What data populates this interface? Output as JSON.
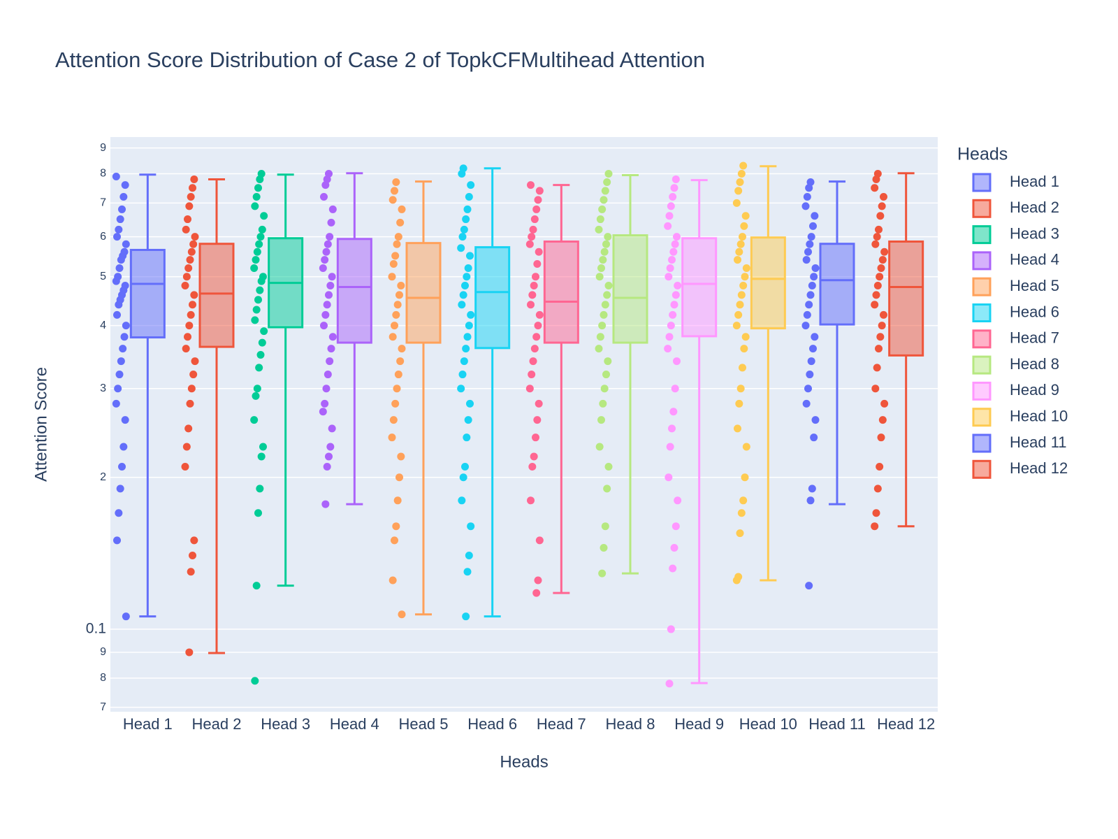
{
  "chart_data": {
    "type": "box",
    "title": "Attention Score Distribution of Case 2 of TopkCFMultihead Attention",
    "x_label": "Heads",
    "y_label": "Attention Score",
    "legend_title": "Heads",
    "log_y": true,
    "grid": true,
    "legend_position": "right",
    "ylim": [
      0.0686,
      0.946
    ],
    "yticks": [
      {
        "value": 0.9,
        "label": "9"
      },
      {
        "value": 0.8,
        "label": "8"
      },
      {
        "value": 0.7,
        "label": "7"
      },
      {
        "value": 0.6,
        "label": "6"
      },
      {
        "value": 0.5,
        "label": "5"
      },
      {
        "value": 0.4,
        "label": "4"
      },
      {
        "value": 0.3,
        "label": "3"
      },
      {
        "value": 0.2,
        "label": "2"
      },
      0.1,
      {
        "value": 0.09,
        "label": "9"
      },
      {
        "value": 0.08,
        "label": "8"
      },
      {
        "value": 0.07,
        "label": "7"
      }
    ],
    "series": [
      {
        "name": "Head 1",
        "color": "#636efa",
        "lowerfence": 0.106,
        "q1": 0.379,
        "median": 0.484,
        "q3": 0.565,
        "upperfence": 0.797,
        "points": [
          0.79,
          0.76,
          0.72,
          0.68,
          0.65,
          0.62,
          0.6,
          0.58,
          0.56,
          0.55,
          0.54,
          0.52,
          0.5,
          0.49,
          0.48,
          0.47,
          0.46,
          0.45,
          0.44,
          0.42,
          0.4,
          0.38,
          0.36,
          0.34,
          0.32,
          0.3,
          0.28,
          0.26,
          0.23,
          0.21,
          0.19,
          0.17,
          0.15,
          0.106
        ]
      },
      {
        "name": "Head 2",
        "color": "#EF553B",
        "lowerfence": 0.0897,
        "q1": 0.363,
        "median": 0.463,
        "q3": 0.581,
        "upperfence": 0.78,
        "points": [
          0.78,
          0.75,
          0.72,
          0.69,
          0.65,
          0.62,
          0.6,
          0.58,
          0.56,
          0.54,
          0.52,
          0.5,
          0.48,
          0.46,
          0.44,
          0.42,
          0.4,
          0.38,
          0.36,
          0.34,
          0.32,
          0.3,
          0.28,
          0.25,
          0.23,
          0.21,
          0.15,
          0.14,
          0.13,
          0.09
        ]
      },
      {
        "name": "Head 3",
        "color": "#00cc96",
        "lowerfence": 0.122,
        "q1": 0.397,
        "median": 0.486,
        "q3": 0.596,
        "upperfence": 0.797,
        "points": [
          0.8,
          0.78,
          0.75,
          0.72,
          0.69,
          0.66,
          0.62,
          0.6,
          0.58,
          0.56,
          0.54,
          0.52,
          0.5,
          0.49,
          0.47,
          0.45,
          0.43,
          0.41,
          0.39,
          0.37,
          0.35,
          0.33,
          0.3,
          0.29,
          0.26,
          0.23,
          0.22,
          0.19,
          0.17,
          0.122,
          0.079
        ]
      },
      {
        "name": "Head 4",
        "color": "#ab63fa",
        "lowerfence": 0.177,
        "q1": 0.37,
        "median": 0.477,
        "q3": 0.594,
        "upperfence": 0.802,
        "points": [
          0.8,
          0.78,
          0.76,
          0.72,
          0.68,
          0.64,
          0.6,
          0.58,
          0.56,
          0.54,
          0.52,
          0.5,
          0.48,
          0.46,
          0.44,
          0.42,
          0.4,
          0.38,
          0.36,
          0.34,
          0.32,
          0.3,
          0.28,
          0.27,
          0.25,
          0.23,
          0.22,
          0.21,
          0.177
        ]
      },
      {
        "name": "Head 5",
        "color": "#FFA15A",
        "lowerfence": 0.107,
        "q1": 0.37,
        "median": 0.454,
        "q3": 0.583,
        "upperfence": 0.772,
        "points": [
          0.77,
          0.74,
          0.71,
          0.68,
          0.64,
          0.6,
          0.58,
          0.55,
          0.53,
          0.5,
          0.48,
          0.46,
          0.44,
          0.42,
          0.4,
          0.38,
          0.36,
          0.34,
          0.32,
          0.3,
          0.28,
          0.26,
          0.24,
          0.22,
          0.2,
          0.18,
          0.16,
          0.15,
          0.125,
          0.107
        ]
      },
      {
        "name": "Head 6",
        "color": "#19d3f3",
        "lowerfence": 0.106,
        "q1": 0.361,
        "median": 0.466,
        "q3": 0.572,
        "upperfence": 0.82,
        "points": [
          0.82,
          0.8,
          0.76,
          0.72,
          0.68,
          0.65,
          0.62,
          0.6,
          0.57,
          0.55,
          0.52,
          0.5,
          0.48,
          0.46,
          0.44,
          0.42,
          0.4,
          0.38,
          0.36,
          0.34,
          0.32,
          0.3,
          0.28,
          0.26,
          0.24,
          0.21,
          0.2,
          0.18,
          0.16,
          0.14,
          0.13,
          0.106
        ]
      },
      {
        "name": "Head 7",
        "color": "#FF6692",
        "lowerfence": 0.118,
        "q1": 0.37,
        "median": 0.446,
        "q3": 0.587,
        "upperfence": 0.76,
        "points": [
          0.76,
          0.74,
          0.71,
          0.68,
          0.65,
          0.62,
          0.6,
          0.58,
          0.56,
          0.53,
          0.5,
          0.48,
          0.46,
          0.44,
          0.42,
          0.4,
          0.38,
          0.36,
          0.34,
          0.32,
          0.3,
          0.28,
          0.26,
          0.24,
          0.22,
          0.21,
          0.18,
          0.15,
          0.125,
          0.118
        ]
      },
      {
        "name": "Head 8",
        "color": "#B6E880",
        "lowerfence": 0.129,
        "q1": 0.37,
        "median": 0.454,
        "q3": 0.604,
        "upperfence": 0.795,
        "points": [
          0.8,
          0.77,
          0.74,
          0.71,
          0.68,
          0.65,
          0.62,
          0.6,
          0.58,
          0.56,
          0.54,
          0.52,
          0.5,
          0.48,
          0.46,
          0.44,
          0.42,
          0.4,
          0.38,
          0.36,
          0.34,
          0.32,
          0.3,
          0.28,
          0.26,
          0.23,
          0.21,
          0.19,
          0.16,
          0.145,
          0.129
        ]
      },
      {
        "name": "Head 9",
        "color": "#FF97FF",
        "lowerfence": 0.0782,
        "q1": 0.381,
        "median": 0.484,
        "q3": 0.596,
        "upperfence": 0.777,
        "points": [
          0.78,
          0.75,
          0.72,
          0.69,
          0.66,
          0.63,
          0.6,
          0.58,
          0.56,
          0.54,
          0.52,
          0.5,
          0.48,
          0.46,
          0.44,
          0.42,
          0.4,
          0.38,
          0.36,
          0.34,
          0.3,
          0.27,
          0.25,
          0.23,
          0.2,
          0.18,
          0.16,
          0.145,
          0.132,
          0.1,
          0.078
        ]
      },
      {
        "name": "Head 10",
        "color": "#FECB52",
        "lowerfence": 0.125,
        "q1": 0.395,
        "median": 0.495,
        "q3": 0.598,
        "upperfence": 0.828,
        "points": [
          0.83,
          0.8,
          0.77,
          0.74,
          0.7,
          0.66,
          0.63,
          0.6,
          0.58,
          0.56,
          0.54,
          0.52,
          0.5,
          0.48,
          0.46,
          0.44,
          0.42,
          0.4,
          0.38,
          0.36,
          0.33,
          0.3,
          0.28,
          0.25,
          0.23,
          0.2,
          0.18,
          0.17,
          0.155,
          0.127,
          0.125
        ]
      },
      {
        "name": "Head 11",
        "color": "#636efa",
        "lowerfence": 0.177,
        "q1": 0.402,
        "median": 0.492,
        "q3": 0.581,
        "upperfence": 0.772,
        "points": [
          0.77,
          0.75,
          0.72,
          0.69,
          0.66,
          0.63,
          0.6,
          0.58,
          0.56,
          0.54,
          0.52,
          0.5,
          0.48,
          0.46,
          0.44,
          0.42,
          0.4,
          0.38,
          0.36,
          0.34,
          0.32,
          0.3,
          0.28,
          0.26,
          0.24,
          0.19,
          0.18,
          0.122
        ]
      },
      {
        "name": "Head 12",
        "color": "#EF553B",
        "lowerfence": 0.16,
        "q1": 0.349,
        "median": 0.477,
        "q3": 0.587,
        "upperfence": 0.802,
        "points": [
          0.8,
          0.78,
          0.75,
          0.72,
          0.69,
          0.66,
          0.62,
          0.6,
          0.58,
          0.56,
          0.54,
          0.52,
          0.5,
          0.48,
          0.46,
          0.44,
          0.42,
          0.4,
          0.38,
          0.36,
          0.33,
          0.3,
          0.28,
          0.26,
          0.24,
          0.21,
          0.19,
          0.17,
          0.16
        ]
      }
    ]
  }
}
